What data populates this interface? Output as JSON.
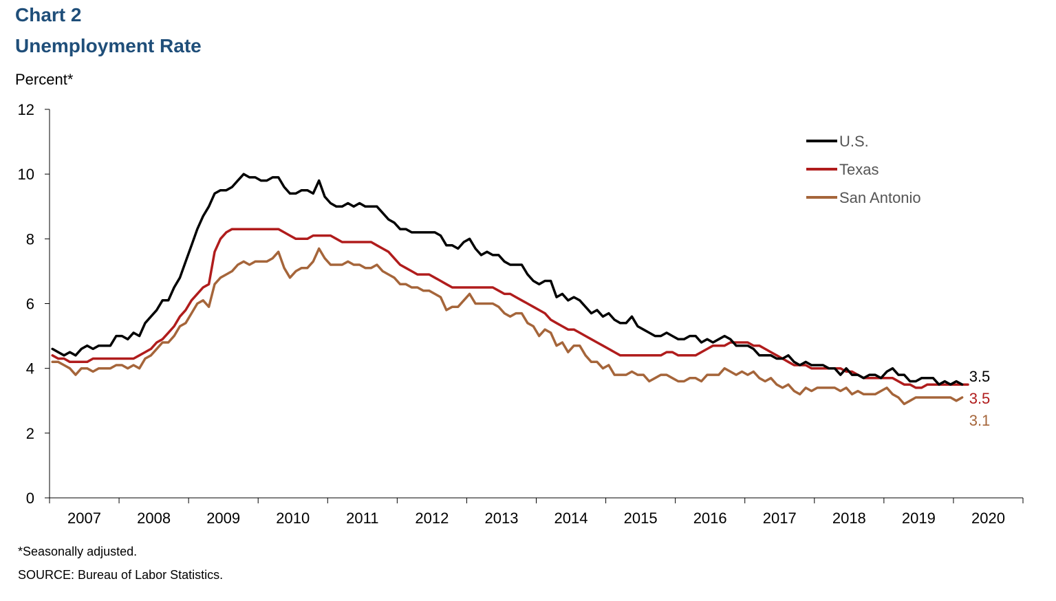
{
  "header": {
    "chart_number": "Chart 2",
    "title": "Unemployment Rate",
    "unit_label": "Percent*"
  },
  "footer": {
    "footnote": "*Seasonally adjusted.",
    "source": "SOURCE: Bureau of Labor Statistics."
  },
  "chart_data": {
    "type": "line",
    "title": "Unemployment Rate",
    "ylabel": "Percent*",
    "xlabel": "",
    "ylim": [
      0,
      12
    ],
    "yticks": [
      "0",
      "2",
      "4",
      "6",
      "8",
      "10",
      "12"
    ],
    "xticks": [
      "2007",
      "2008",
      "2009",
      "2010",
      "2011",
      "2012",
      "2013",
      "2014",
      "2015",
      "2016",
      "2017",
      "2018",
      "2019",
      "2020"
    ],
    "x_start": "2007-01",
    "grid": false,
    "legend_position": "top-right",
    "series": [
      {
        "name": "U.S.",
        "color": "#000000",
        "end_label": "3.5",
        "values": [
          4.6,
          4.5,
          4.4,
          4.5,
          4.4,
          4.6,
          4.7,
          4.6,
          4.7,
          4.7,
          4.7,
          5.0,
          5.0,
          4.9,
          5.1,
          5.0,
          5.4,
          5.6,
          5.8,
          6.1,
          6.1,
          6.5,
          6.8,
          7.3,
          7.8,
          8.3,
          8.7,
          9.0,
          9.4,
          9.5,
          9.5,
          9.6,
          9.8,
          10.0,
          9.9,
          9.9,
          9.8,
          9.8,
          9.9,
          9.9,
          9.6,
          9.4,
          9.4,
          9.5,
          9.5,
          9.4,
          9.8,
          9.3,
          9.1,
          9.0,
          9.0,
          9.1,
          9.0,
          9.1,
          9.0,
          9.0,
          9.0,
          8.8,
          8.6,
          8.5,
          8.3,
          8.3,
          8.2,
          8.2,
          8.2,
          8.2,
          8.2,
          8.1,
          7.8,
          7.8,
          7.7,
          7.9,
          8.0,
          7.7,
          7.5,
          7.6,
          7.5,
          7.5,
          7.3,
          7.2,
          7.2,
          7.2,
          6.9,
          6.7,
          6.6,
          6.7,
          6.7,
          6.2,
          6.3,
          6.1,
          6.2,
          6.1,
          5.9,
          5.7,
          5.8,
          5.6,
          5.7,
          5.5,
          5.4,
          5.4,
          5.6,
          5.3,
          5.2,
          5.1,
          5.0,
          5.0,
          5.1,
          5.0,
          4.9,
          4.9,
          5.0,
          5.0,
          4.8,
          4.9,
          4.8,
          4.9,
          5.0,
          4.9,
          4.7,
          4.7,
          4.7,
          4.6,
          4.4,
          4.4,
          4.4,
          4.3,
          4.3,
          4.4,
          4.2,
          4.1,
          4.2,
          4.1,
          4.1,
          4.1,
          4.0,
          4.0,
          3.8,
          4.0,
          3.8,
          3.8,
          3.7,
          3.8,
          3.8,
          3.7,
          3.9,
          4.0,
          3.8,
          3.8,
          3.6,
          3.6,
          3.7,
          3.7,
          3.7,
          3.5,
          3.6,
          3.5,
          3.6,
          3.5
        ]
      },
      {
        "name": "Texas",
        "color": "#b01c1c",
        "end_label": "3.5",
        "values": [
          4.4,
          4.3,
          4.3,
          4.2,
          4.2,
          4.2,
          4.2,
          4.3,
          4.3,
          4.3,
          4.3,
          4.3,
          4.3,
          4.3,
          4.3,
          4.4,
          4.5,
          4.6,
          4.8,
          4.9,
          5.1,
          5.3,
          5.6,
          5.8,
          6.1,
          6.3,
          6.5,
          6.6,
          7.6,
          8.0,
          8.2,
          8.3,
          8.3,
          8.3,
          8.3,
          8.3,
          8.3,
          8.3,
          8.3,
          8.3,
          8.2,
          8.1,
          8.0,
          8.0,
          8.0,
          8.1,
          8.1,
          8.1,
          8.1,
          8.0,
          7.9,
          7.9,
          7.9,
          7.9,
          7.9,
          7.9,
          7.8,
          7.7,
          7.6,
          7.4,
          7.2,
          7.1,
          7.0,
          6.9,
          6.9,
          6.9,
          6.8,
          6.7,
          6.6,
          6.5,
          6.5,
          6.5,
          6.5,
          6.5,
          6.5,
          6.5,
          6.5,
          6.4,
          6.3,
          6.3,
          6.2,
          6.1,
          6.0,
          5.9,
          5.8,
          5.7,
          5.5,
          5.4,
          5.3,
          5.2,
          5.2,
          5.1,
          5.0,
          4.9,
          4.8,
          4.7,
          4.6,
          4.5,
          4.4,
          4.4,
          4.4,
          4.4,
          4.4,
          4.4,
          4.4,
          4.4,
          4.5,
          4.5,
          4.4,
          4.4,
          4.4,
          4.4,
          4.5,
          4.6,
          4.7,
          4.7,
          4.7,
          4.8,
          4.8,
          4.8,
          4.8,
          4.7,
          4.7,
          4.6,
          4.5,
          4.4,
          4.3,
          4.2,
          4.1,
          4.1,
          4.1,
          4.0,
          4.0,
          4.0,
          4.0,
          4.0,
          4.0,
          3.9,
          3.9,
          3.8,
          3.7,
          3.7,
          3.7,
          3.7,
          3.7,
          3.7,
          3.6,
          3.5,
          3.5,
          3.4,
          3.4,
          3.5,
          3.5,
          3.5,
          3.5,
          3.5,
          3.5,
          3.5,
          3.5
        ]
      },
      {
        "name": "San Antonio",
        "color": "#a5653a",
        "end_label": "3.1",
        "values": [
          4.2,
          4.2,
          4.1,
          4.0,
          3.8,
          4.0,
          4.0,
          3.9,
          4.0,
          4.0,
          4.0,
          4.1,
          4.1,
          4.0,
          4.1,
          4.0,
          4.3,
          4.4,
          4.6,
          4.8,
          4.8,
          5.0,
          5.3,
          5.4,
          5.7,
          6.0,
          6.1,
          5.9,
          6.6,
          6.8,
          6.9,
          7.0,
          7.2,
          7.3,
          7.2,
          7.3,
          7.3,
          7.3,
          7.4,
          7.6,
          7.1,
          6.8,
          7.0,
          7.1,
          7.1,
          7.3,
          7.7,
          7.4,
          7.2,
          7.2,
          7.2,
          7.3,
          7.2,
          7.2,
          7.1,
          7.1,
          7.2,
          7.0,
          6.9,
          6.8,
          6.6,
          6.6,
          6.5,
          6.5,
          6.4,
          6.4,
          6.3,
          6.2,
          5.8,
          5.9,
          5.9,
          6.1,
          6.3,
          6.0,
          6.0,
          6.0,
          6.0,
          5.9,
          5.7,
          5.6,
          5.7,
          5.7,
          5.4,
          5.3,
          5.0,
          5.2,
          5.1,
          4.7,
          4.8,
          4.5,
          4.7,
          4.7,
          4.4,
          4.2,
          4.2,
          4.0,
          4.1,
          3.8,
          3.8,
          3.8,
          3.9,
          3.8,
          3.8,
          3.6,
          3.7,
          3.8,
          3.8,
          3.7,
          3.6,
          3.6,
          3.7,
          3.7,
          3.6,
          3.8,
          3.8,
          3.8,
          4.0,
          3.9,
          3.8,
          3.9,
          3.8,
          3.9,
          3.7,
          3.6,
          3.7,
          3.5,
          3.4,
          3.5,
          3.3,
          3.2,
          3.4,
          3.3,
          3.4,
          3.4,
          3.4,
          3.4,
          3.3,
          3.4,
          3.2,
          3.3,
          3.2,
          3.2,
          3.2,
          3.3,
          3.4,
          3.2,
          3.1,
          2.9,
          3.0,
          3.1,
          3.1,
          3.1,
          3.1,
          3.1,
          3.1,
          3.1,
          3.0,
          3.1
        ]
      }
    ]
  }
}
